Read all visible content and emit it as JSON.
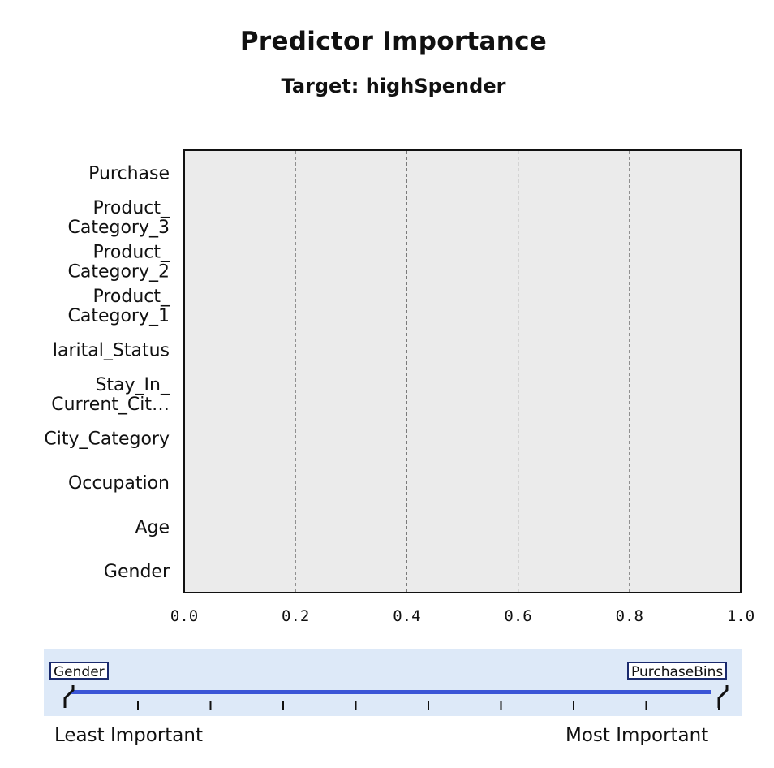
{
  "chart_data": {
    "type": "bar",
    "orientation": "horizontal",
    "title": "Predictor Importance",
    "subtitle": "Target: highSpender",
    "categories": [
      [
        "Purchase"
      ],
      [
        "Product_",
        "Category_3"
      ],
      [
        "Product_",
        "Category_2"
      ],
      [
        "Product_",
        "Category_1"
      ],
      [
        "larital_Status"
      ],
      [
        "Stay_In_",
        "Current_Cit…"
      ],
      [
        "City_Category"
      ],
      [
        "Occupation"
      ],
      [
        "Age"
      ],
      [
        "Gender"
      ]
    ],
    "values": [
      0,
      0,
      0,
      0,
      0,
      0,
      0,
      0,
      0,
      0
    ],
    "xlim": [
      0.0,
      1.0
    ],
    "xticks": [
      "0.0",
      "0.2",
      "0.4",
      "0.6",
      "0.8",
      "1.0"
    ],
    "grid": true,
    "colors": {
      "plot_bg": "#ebebeb",
      "slider_bg": "#dde9f8",
      "slider_bar": "#3a55d6",
      "tag_border": "#1a2a6e"
    }
  },
  "slider": {
    "left_tag": "Gender",
    "right_tag": "PurchaseBins",
    "least_label": "Least Important",
    "most_label": "Most Important"
  }
}
